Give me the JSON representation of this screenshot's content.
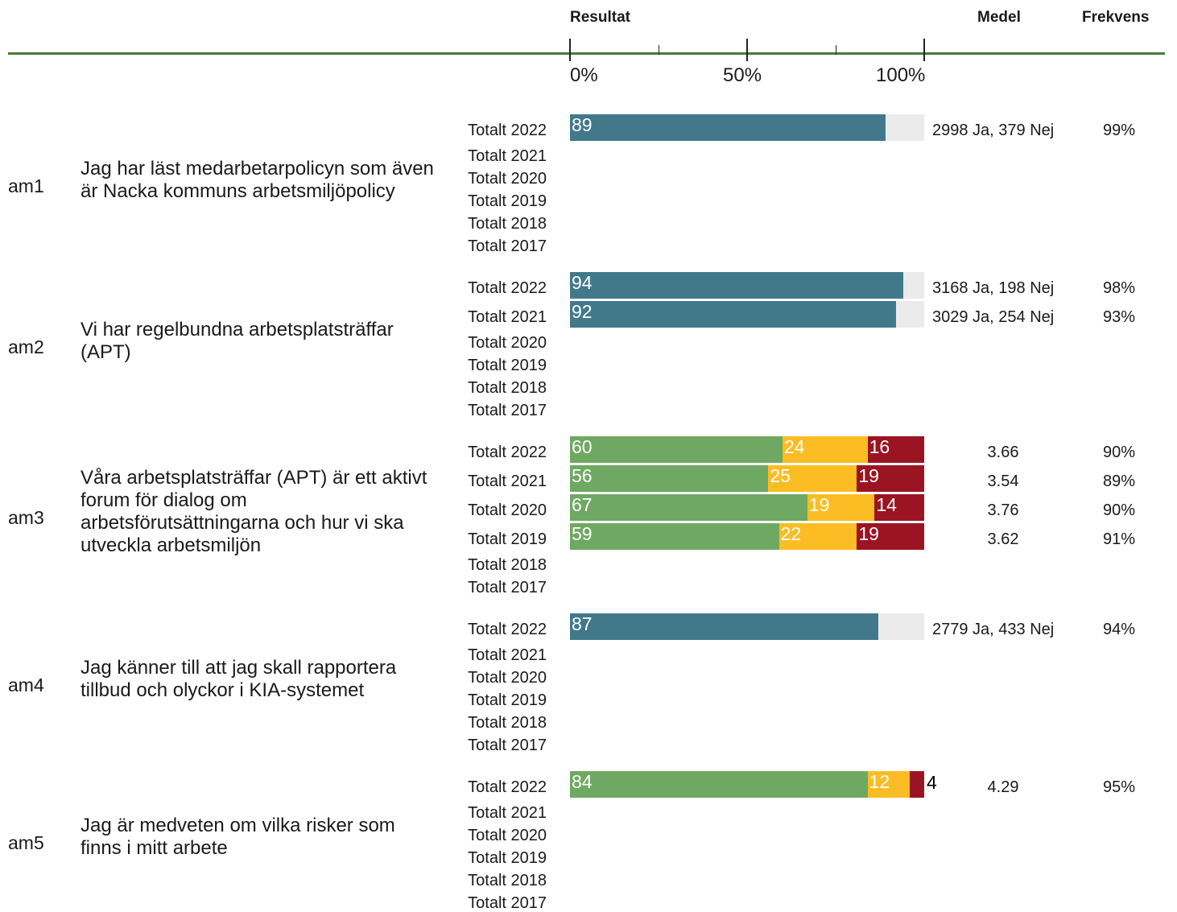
{
  "header": {
    "resultat": "Resultat",
    "medel": "Medel",
    "frekvens": "Frekvens"
  },
  "axis": {
    "xlim": [
      0,
      100
    ],
    "xticks": [
      {
        "value": 0,
        "label": "0%"
      },
      {
        "value": 50,
        "label": "50%"
      },
      {
        "value": 100,
        "label": "100%"
      }
    ],
    "minor_ticks": [
      25,
      75
    ],
    "color": "#4a7a35"
  },
  "colors": {
    "binary": [
      "#41798b"
    ],
    "track": "#ebebeb",
    "scale": [
      "#6fa862",
      "#fbbd23",
      "#9b1422"
    ]
  },
  "items": [
    {
      "code": "am1",
      "question": "Jag har läst medarbetarpolicyn som även är Nacka kommuns arbetsmiljöpolicy",
      "rows": [
        {
          "label": "Totalt 2022",
          "values": [
            89
          ],
          "medel": "2998 Ja, 379 Nej",
          "frekvens": "99%"
        },
        {
          "label": "Totalt 2021"
        },
        {
          "label": "Totalt 2020"
        },
        {
          "label": "Totalt 2019"
        },
        {
          "label": "Totalt 2018"
        },
        {
          "label": "Totalt 2017"
        }
      ]
    },
    {
      "code": "am2",
      "question": "Vi har regelbundna arbetsplatsträffar (APT)",
      "rows": [
        {
          "label": "Totalt 2022",
          "values": [
            94
          ],
          "medel": "3168 Ja, 198 Nej",
          "frekvens": "98%"
        },
        {
          "label": "Totalt 2021",
          "values": [
            92
          ],
          "medel": "3029 Ja, 254 Nej",
          "frekvens": "93%"
        },
        {
          "label": "Totalt 2020"
        },
        {
          "label": "Totalt 2019"
        },
        {
          "label": "Totalt 2018"
        },
        {
          "label": "Totalt 2017"
        }
      ]
    },
    {
      "code": "am3",
      "question": "Våra arbetsplatsträffar (APT) är ett aktivt forum för dialog om arbetsförutsättningarna och hur vi ska utveckla arbetsmiljön",
      "rows": [
        {
          "label": "Totalt 2022",
          "values": [
            60,
            24,
            16
          ],
          "medel": 3.66,
          "frekvens": "90%"
        },
        {
          "label": "Totalt 2021",
          "values": [
            56,
            25,
            19
          ],
          "medel": 3.54,
          "frekvens": "89%"
        },
        {
          "label": "Totalt 2020",
          "values": [
            67,
            19,
            14
          ],
          "medel": 3.76,
          "frekvens": "90%"
        },
        {
          "label": "Totalt 2019",
          "values": [
            59,
            22,
            19
          ],
          "medel": 3.62,
          "frekvens": "91%"
        },
        {
          "label": "Totalt 2018"
        },
        {
          "label": "Totalt 2017"
        }
      ]
    },
    {
      "code": "am4",
      "question": "Jag känner till att jag skall rapportera tillbud och olyckor i KIA-systemet",
      "rows": [
        {
          "label": "Totalt 2022",
          "values": [
            87
          ],
          "medel": "2779 Ja, 433 Nej",
          "frekvens": "94%"
        },
        {
          "label": "Totalt 2021"
        },
        {
          "label": "Totalt 2020"
        },
        {
          "label": "Totalt 2019"
        },
        {
          "label": "Totalt 2018"
        },
        {
          "label": "Totalt 2017"
        }
      ]
    },
    {
      "code": "am5",
      "question": "Jag är medveten om vilka risker som finns i mitt arbete",
      "rows": [
        {
          "label": "Totalt 2022",
          "values": [
            84,
            12,
            4
          ],
          "medel": 4.29,
          "frekvens": "95%"
        },
        {
          "label": "Totalt 2021"
        },
        {
          "label": "Totalt 2020"
        },
        {
          "label": "Totalt 2019"
        },
        {
          "label": "Totalt 2018"
        },
        {
          "label": "Totalt 2017"
        }
      ]
    }
  ]
}
